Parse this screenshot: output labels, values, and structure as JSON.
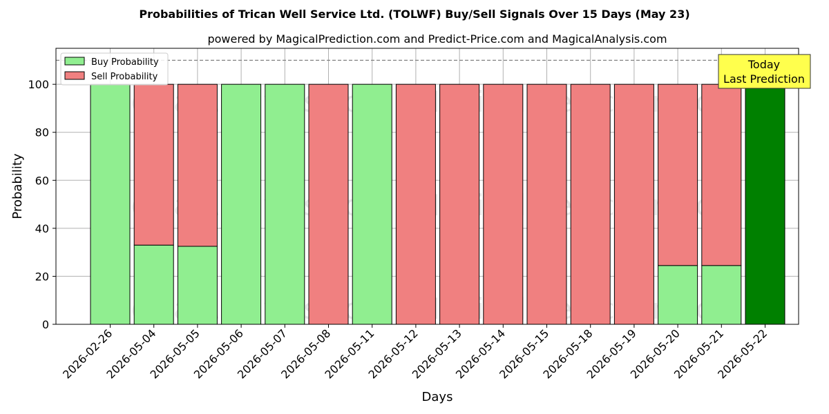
{
  "chart_data": {
    "type": "bar",
    "title": "Probabilities of Trican Well Service Ltd. (TOLWF) Buy/Sell Signals Over 15 Days (May 23)",
    "subtitle": "powered by MagicalPrediction.com and Predict-Price.com and MagicalAnalysis.com",
    "xlabel": "Days",
    "ylabel": "Probability",
    "ylim": [
      0,
      115
    ],
    "yticks": [
      0,
      20,
      40,
      60,
      80,
      100
    ],
    "grid": true,
    "legend_position": "top-left",
    "reference_line": 110,
    "categories": [
      "2026-02-26",
      "2026-05-04",
      "2026-05-05",
      "2026-05-06",
      "2026-05-07",
      "2026-05-08",
      "2026-05-11",
      "2026-05-12",
      "2026-05-13",
      "2026-05-14",
      "2026-05-15",
      "2026-05-18",
      "2026-05-19",
      "2026-05-20",
      "2026-05-21",
      "2026-05-22"
    ],
    "series": [
      {
        "name": "Buy Probability",
        "color": "#90ee90",
        "values": [
          100,
          33,
          32.5,
          100,
          100,
          0,
          100,
          0,
          0,
          0,
          0,
          0,
          0,
          24.5,
          24.5,
          100
        ]
      },
      {
        "name": "Sell Probability",
        "color": "#f08080",
        "values": [
          0,
          67,
          67.5,
          0,
          0,
          100,
          0,
          100,
          100,
          100,
          100,
          100,
          100,
          75.5,
          75.5,
          0
        ]
      }
    ],
    "highlight": {
      "index": 15,
      "color": "#008000"
    },
    "annotation": {
      "lines": [
        "Today",
        "Last Prediction"
      ],
      "bg": "#ffff4d"
    },
    "watermarks": [
      "MagicalAnalysis.com",
      "MagicalPrediction.com"
    ]
  }
}
